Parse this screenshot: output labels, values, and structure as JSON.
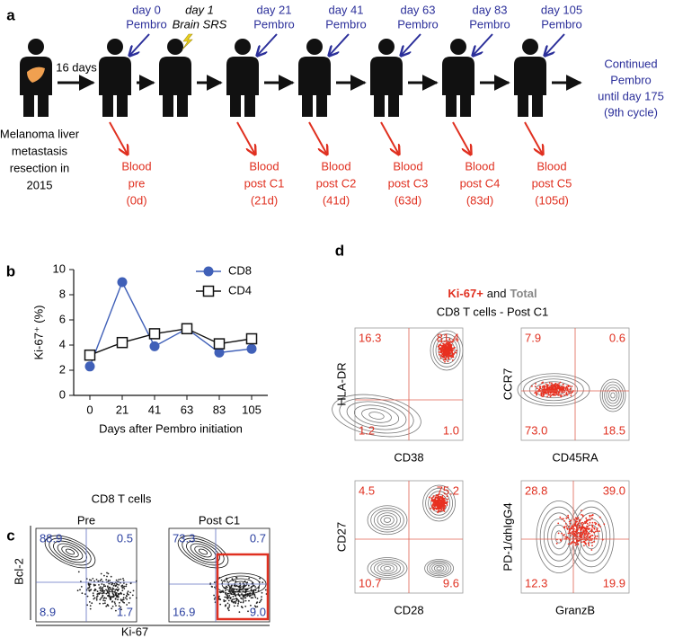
{
  "panel_a": {
    "label": "a",
    "interval": "16 days",
    "resection": [
      "Melanoma liver",
      "metastasis",
      "resection in",
      "2015"
    ],
    "srs": [
      "day 1",
      "Brain SRS"
    ],
    "doses": [
      [
        "day 0",
        "Pembro"
      ],
      [
        "day 21",
        "Pembro"
      ],
      [
        "day 41",
        "Pembro"
      ],
      [
        "day 63",
        "Pembro"
      ],
      [
        "day 83",
        "Pembro"
      ],
      [
        "day 105",
        "Pembro"
      ]
    ],
    "bloods": [
      [
        "Blood",
        "pre",
        "(0d)"
      ],
      [
        "Blood",
        "post C1",
        "(21d)"
      ],
      [
        "Blood",
        "post C2",
        "(41d)"
      ],
      [
        "Blood",
        "post C3",
        "(63d)"
      ],
      [
        "Blood",
        "post C4",
        "(83d)"
      ],
      [
        "Blood",
        "post C5",
        "(105d)"
      ]
    ],
    "continued": [
      "Continued",
      "Pembro",
      "until day 175",
      "(9th cycle)"
    ]
  },
  "chart_data": {
    "type": "line",
    "panel_label": "b",
    "ylabel": "Ki-67⁺ (%)",
    "xlabel": "Days after Pembro initiation",
    "categories": [
      "0",
      "21",
      "41",
      "63",
      "83",
      "105"
    ],
    "series": [
      {
        "name": "CD8",
        "color": "#4060b8",
        "marker": "circle",
        "values": [
          2.3,
          9.0,
          3.9,
          5.3,
          3.4,
          3.7
        ]
      },
      {
        "name": "CD4",
        "color": "#111111",
        "marker": "square",
        "values": [
          3.2,
          4.2,
          4.9,
          5.3,
          4.1,
          4.5
        ]
      }
    ],
    "ylim": [
      0,
      10
    ],
    "yticks": [
      0,
      2,
      4,
      6,
      8,
      10
    ],
    "legend": "upper right"
  },
  "panel_c": {
    "label": "c",
    "title": "CD8 T cells",
    "ylabel": "Bcl-2",
    "xlabel": "Ki-67",
    "plots": [
      {
        "title": "Pre",
        "tl": "88.9",
        "tr": "0.5",
        "bl": "8.9",
        "br": "1.7"
      },
      {
        "title": "Post C1",
        "tl": "73.3",
        "tr": "0.7",
        "bl": "16.9",
        "br": "9.0"
      }
    ]
  },
  "panel_d": {
    "label": "d",
    "title_red": "Ki-67+",
    "title_mid": "and",
    "title_gray": "Total",
    "subtitle": "CD8 T cells - Post C1",
    "plots": [
      {
        "ylabel": "HLA-DR",
        "xlabel": "CD38",
        "tl": "16.3",
        "tr": "81.4",
        "bl": "1.2",
        "br": "1.0"
      },
      {
        "ylabel": "CCR7",
        "xlabel": "CD45RA",
        "tl": "7.9",
        "tr": "0.6",
        "bl": "73.0",
        "br": "18.5"
      },
      {
        "ylabel": "CD27",
        "xlabel": "CD28",
        "tl": "4.5",
        "tr": "75.2",
        "bl": "10.7",
        "br": "9.6"
      },
      {
        "ylabel": "PD-1/αhIgG4",
        "xlabel": "GranzB",
        "tl": "28.8",
        "tr": "39.0",
        "bl": "12.3",
        "br": "19.9"
      }
    ]
  }
}
